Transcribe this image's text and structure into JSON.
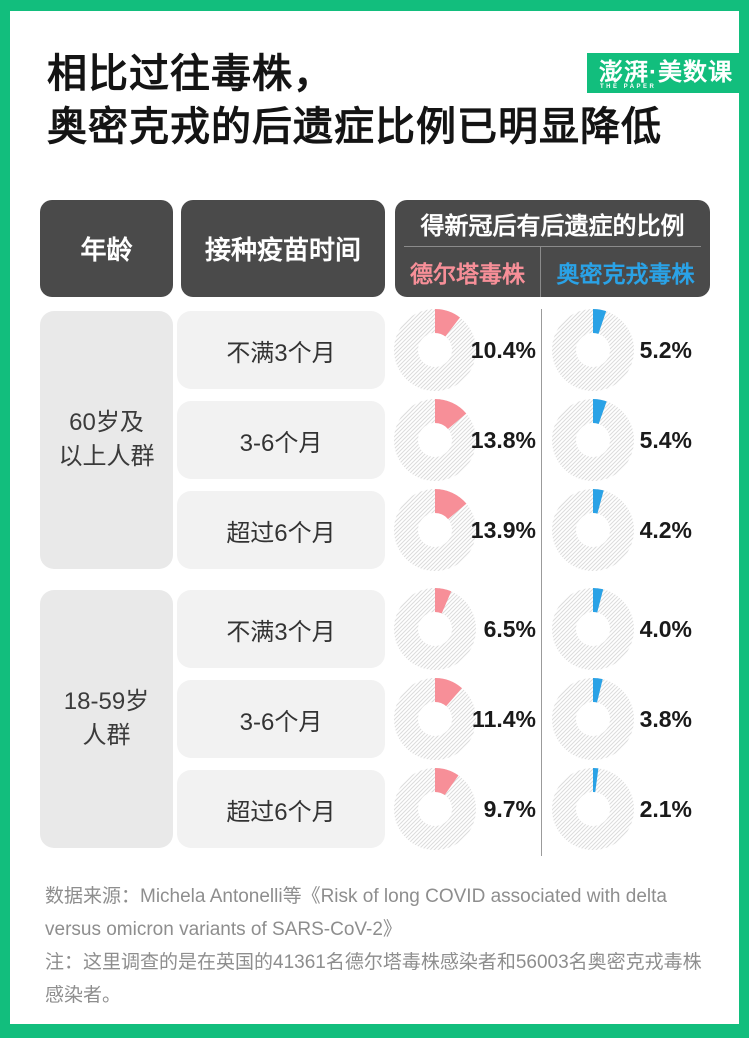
{
  "header": {
    "title_line1": "相比过往毒株，",
    "title_line2": "奥密克戎的后遗症比例已明显降低",
    "logo_text": "澎湃·美数课",
    "logo_subtext": "THE PAPER"
  },
  "colors": {
    "brand_green": "#12BE7D",
    "delta_pink": "#F78F98",
    "omicron_blue": "#2AA2E6",
    "header_box_dark": "#4A4A4A",
    "age_cell_bg": "#E9E9E9",
    "vaccine_cell_bg": "#F2F2F2",
    "percent_text": "#1A1A1A",
    "footer_text": "#8E8E8E",
    "hatch_line": "#DCDCDC"
  },
  "table_headers": {
    "age": "年龄",
    "vaccine_time": "接种疫苗时间",
    "rate_title": "得新冠后有后遗症的比例",
    "delta_label": "德尔塔毒株",
    "omicron_label": "奥密克戎毒株"
  },
  "chart_data": {
    "type": "donut",
    "unit": "percent",
    "value_range": [
      0,
      100
    ],
    "series": [
      "德尔塔毒株",
      "奥密克戎毒株"
    ],
    "groups": [
      {
        "age_group": "60岁及以上人群",
        "age_lines": [
          "60岁及",
          "以上人群"
        ],
        "rows": [
          {
            "vaccine_time": "不满3个月",
            "delta": 10.4,
            "omicron": 5.2
          },
          {
            "vaccine_time": "3-6个月",
            "delta": 13.8,
            "omicron": 5.4
          },
          {
            "vaccine_time": "超过6个月",
            "delta": 13.9,
            "omicron": 4.2
          }
        ]
      },
      {
        "age_group": "18-59岁人群",
        "age_lines": [
          "18-59岁",
          "人群"
        ],
        "rows": [
          {
            "vaccine_time": "不满3个月",
            "delta": 6.5,
            "omicron": 4.0
          },
          {
            "vaccine_time": "3-6个月",
            "delta": 11.4,
            "omicron": 3.8
          },
          {
            "vaccine_time": "超过6个月",
            "delta": 9.7,
            "omicron": 2.1
          }
        ]
      }
    ]
  },
  "footer": {
    "source": "数据来源：Michela Antonelli等《Risk of long COVID associated with delta versus omicron variants of SARS-CoV-2》",
    "note": "注：这里调查的是在英国的41361名德尔塔毒株感染者和56003名奥密克戎毒株感染者。"
  }
}
